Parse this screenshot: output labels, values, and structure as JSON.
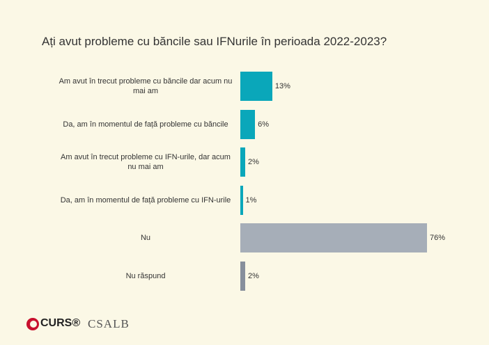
{
  "chart_data": {
    "type": "barh",
    "title": "Ați avut probleme cu băncile sau IFNurile în perioada 2022-2023?",
    "categories": [
      "Am avut în trecut probleme cu băncile dar acum nu mai am",
      "Da, am în momentul de față probleme cu băncile",
      "Am avut în trecut probleme cu IFN-urile, dar acum nu mai am",
      "Da, am în momentul de față probleme cu IFN-urile",
      "Nu",
      "Nu răspund"
    ],
    "values": [
      13,
      6,
      2,
      1,
      76,
      2
    ],
    "value_labels": [
      "13%",
      "6%",
      "2%",
      "1%",
      "76%",
      "2%"
    ],
    "colors": [
      "#0aa7ba",
      "#0aa7ba",
      "#0aa7ba",
      "#0aa7ba",
      "#a6aeb8",
      "#878f9c"
    ]
  },
  "logos": [
    "CURS®",
    "CSALB"
  ]
}
